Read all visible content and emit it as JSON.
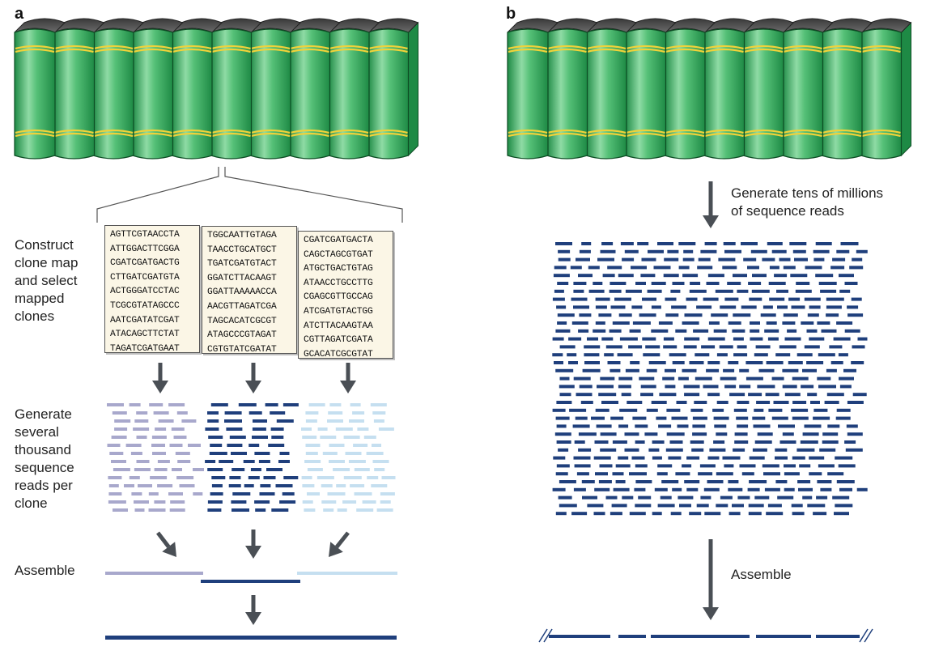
{
  "panel_a": {
    "letter": "a",
    "label_construct": [
      "Construct",
      "clone map",
      "and select",
      "mapped",
      "clones"
    ],
    "label_generate": [
      "Generate",
      "several",
      "thousand",
      "sequence",
      "reads per",
      "clone"
    ],
    "label_assemble": "Assemble",
    "cards": [
      [
        "AGTTCGTAACCTA",
        "ATTGGACTTCGGA",
        "CGATCGATGACTG",
        "CTTGATCGATGTA",
        "ACTGGGATCCTAC",
        "TCGCGTATAGCCC",
        "AATCGATATCGAT",
        "ATACAGCTTCTAT",
        "TAGATCGATGAAT"
      ],
      [
        "TGGCAATTGTAGA",
        "TAACCTGCATGCT",
        "TGATCGATGTACT",
        "GGATCTTACAAGT",
        "GGATTAAAAACCA",
        "AACGTTAGATCGA",
        "TAGCACATCGCGT",
        "ATAGCCCGTAGAT",
        "CGTGTATCGATAT"
      ],
      [
        "CGATCGATGACTA",
        "CAGCTAGCGTGAT",
        "ATGCTGACTGTAG",
        "ATAACCTGCCTTG",
        "CGAGCGTTGCCAG",
        "ATCGATGTACTGG",
        "ATCTTACAAGTAA",
        "CGTTAGATCGATA",
        "GCACATCGCGTAT"
      ]
    ],
    "colors": {
      "clone1": "#a8a8cc",
      "clone2": "#1f3f7c",
      "clone3": "#c5dff0"
    }
  },
  "panel_b": {
    "letter": "b",
    "label_generate": [
      "Generate tens of millions",
      "of sequence reads"
    ],
    "label_assemble": "Assemble"
  },
  "colors": {
    "book_green": "#3aaa5c",
    "book_light": "#9fe0b0",
    "book_band": "#f0d23a",
    "arrow": "#4a4f55",
    "read_blue": "#1f3f7c"
  }
}
